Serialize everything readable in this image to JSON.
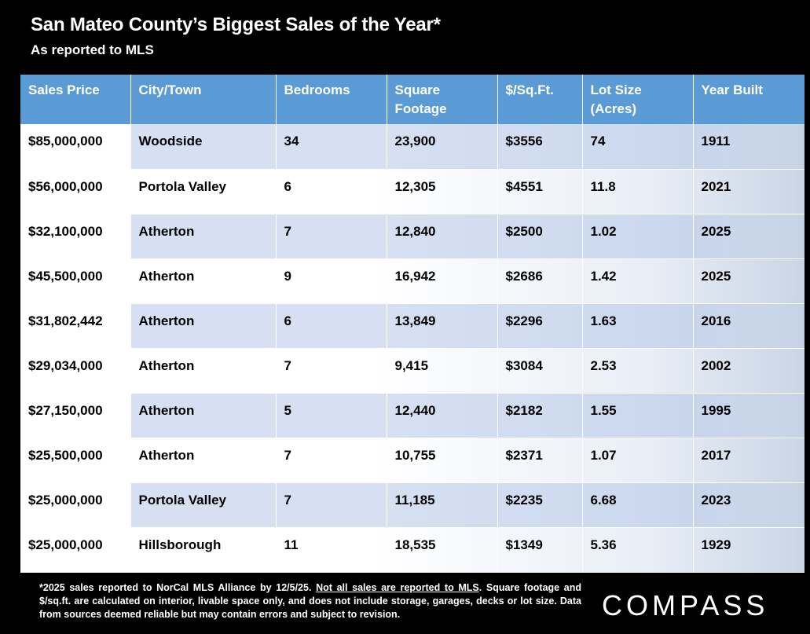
{
  "header": {
    "title": "San Mateo County’s Biggest Sales of the Year*",
    "subtitle": "As reported to MLS"
  },
  "table": {
    "columns": [
      "Sales Price",
      "City/Town",
      "Bedrooms",
      "Square Footage",
      "$/Sq.Ft.",
      "Lot Size (Acres)",
      "Year Built"
    ],
    "rows": [
      [
        "$85,000,000",
        "Woodside",
        "34",
        "23,900",
        "$3556",
        "74",
        "1911"
      ],
      [
        "$56,000,000",
        "Portola Valley",
        "6",
        "12,305",
        "$4551",
        "11.8",
        "2021"
      ],
      [
        "$32,100,000",
        "Atherton",
        "7",
        "12,840",
        "$2500",
        "1.02",
        "2025"
      ],
      [
        "$45,500,000",
        "Atherton",
        "9",
        "16,942",
        "$2686",
        "1.42",
        "2025"
      ],
      [
        "$31,802,442",
        "Atherton",
        "6",
        "13,849",
        "$2296",
        "1.63",
        "2016"
      ],
      [
        "$29,034,000",
        "Atherton",
        "7",
        "9,415",
        "$3084",
        "2.53",
        "2002"
      ],
      [
        "$27,150,000",
        "Atherton",
        "5",
        "12,440",
        "$2182",
        "1.55",
        "1995"
      ],
      [
        "$25,500,000",
        "Atherton",
        "7",
        "10,755",
        "$2371",
        "1.07",
        "2017"
      ],
      [
        "$25,000,000",
        "Portola Valley",
        "7",
        "11,185",
        "$2235",
        "6.68",
        "2023"
      ],
      [
        "$25,000,000",
        "Hillsborough",
        "11",
        "18,535",
        "$1349",
        "5.36",
        "1929"
      ]
    ]
  },
  "footnote": {
    "part1": "*2025 sales reported to NorCal MLS Alliance by 12/5/25. ",
    "underlined": "Not all sales are reported to MLS",
    "part2": ". Square footage and $/sq.ft. are calculated on interior, livable space only, and does not include storage, garages, decks or lot size. Data from sources deemed reliable but may contain errors and subject to revision."
  },
  "brand": {
    "logo_text": "COMPASS"
  },
  "colors": {
    "header_blue": "#5b9bd5",
    "band_blue": "#b4c7e7",
    "background": "#000000"
  }
}
